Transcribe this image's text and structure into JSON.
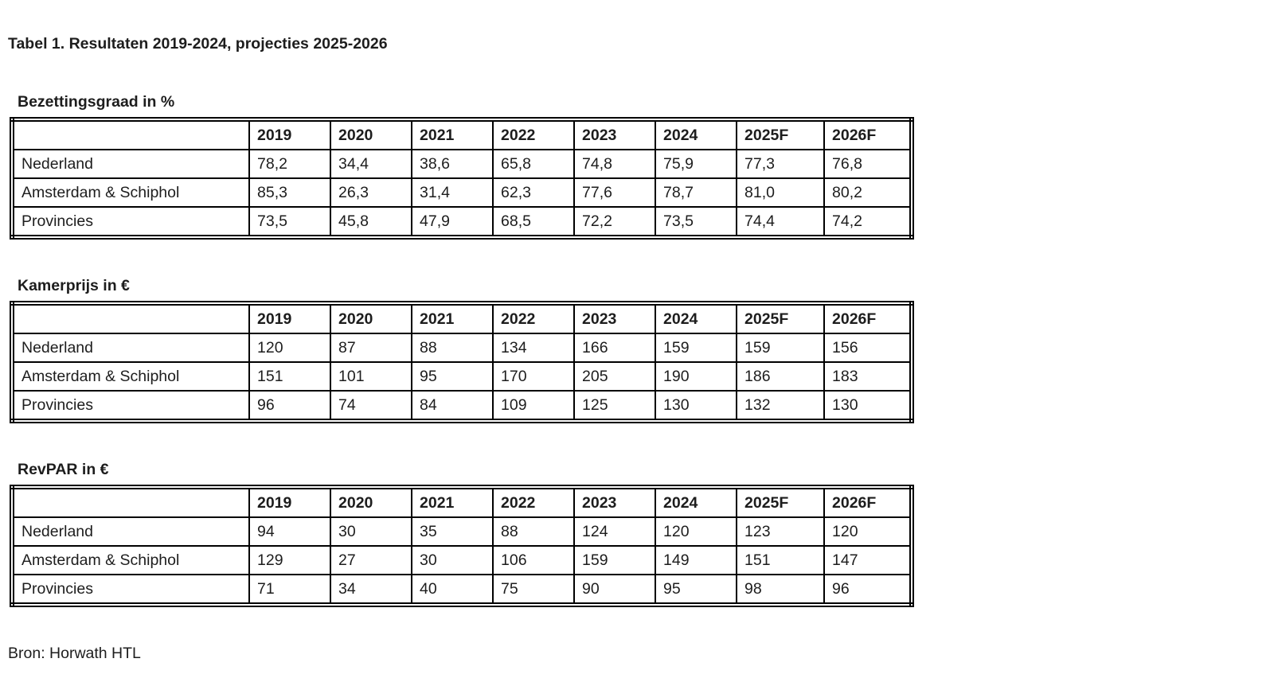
{
  "page": {
    "title": "Tabel 1. Resultaten 2019-2024, projecties 2025-2026",
    "source_note": "Bron: Horwath HTL"
  },
  "columns": [
    "",
    "2019",
    "2020",
    "2021",
    "2022",
    "2023",
    "2024",
    "2025F",
    "2026F"
  ],
  "tables": [
    {
      "heading": "Bezettingsgraad in %",
      "rows": [
        {
          "label": "Nederland",
          "values": [
            "78,2",
            "34,4",
            "38,6",
            "65,8",
            "74,8",
            "75,9",
            "77,3",
            "76,8"
          ]
        },
        {
          "label": "Amsterdam & Schiphol",
          "values": [
            "85,3",
            "26,3",
            "31,4",
            "62,3",
            "77,6",
            "78,7",
            "81,0",
            "80,2"
          ]
        },
        {
          "label": "Provincies",
          "values": [
            "73,5",
            "45,8",
            "47,9",
            "68,5",
            "72,2",
            "73,5",
            "74,4",
            "74,2"
          ]
        }
      ]
    },
    {
      "heading": "Kamerprijs in €",
      "rows": [
        {
          "label": "Nederland",
          "values": [
            "120",
            "87",
            "88",
            "134",
            "166",
            "159",
            "159",
            "156"
          ]
        },
        {
          "label": "Amsterdam & Schiphol",
          "values": [
            "151",
            "101",
            "95",
            "170",
            "205",
            "190",
            "186",
            "183"
          ]
        },
        {
          "label": "Provincies",
          "values": [
            "96",
            "74",
            "84",
            "109",
            "125",
            "130",
            "132",
            "130"
          ]
        }
      ]
    },
    {
      "heading": "RevPAR in €",
      "rows": [
        {
          "label": "Nederland",
          "values": [
            "94",
            "30",
            "35",
            "88",
            "124",
            "120",
            "123",
            "120"
          ]
        },
        {
          "label": "Amsterdam & Schiphol",
          "values": [
            "129",
            "27",
            "30",
            "106",
            "159",
            "149",
            "151",
            "147"
          ]
        },
        {
          "label": "Provincies",
          "values": [
            "71",
            "34",
            "40",
            "75",
            "90",
            "95",
            "98",
            "96"
          ]
        }
      ]
    }
  ]
}
